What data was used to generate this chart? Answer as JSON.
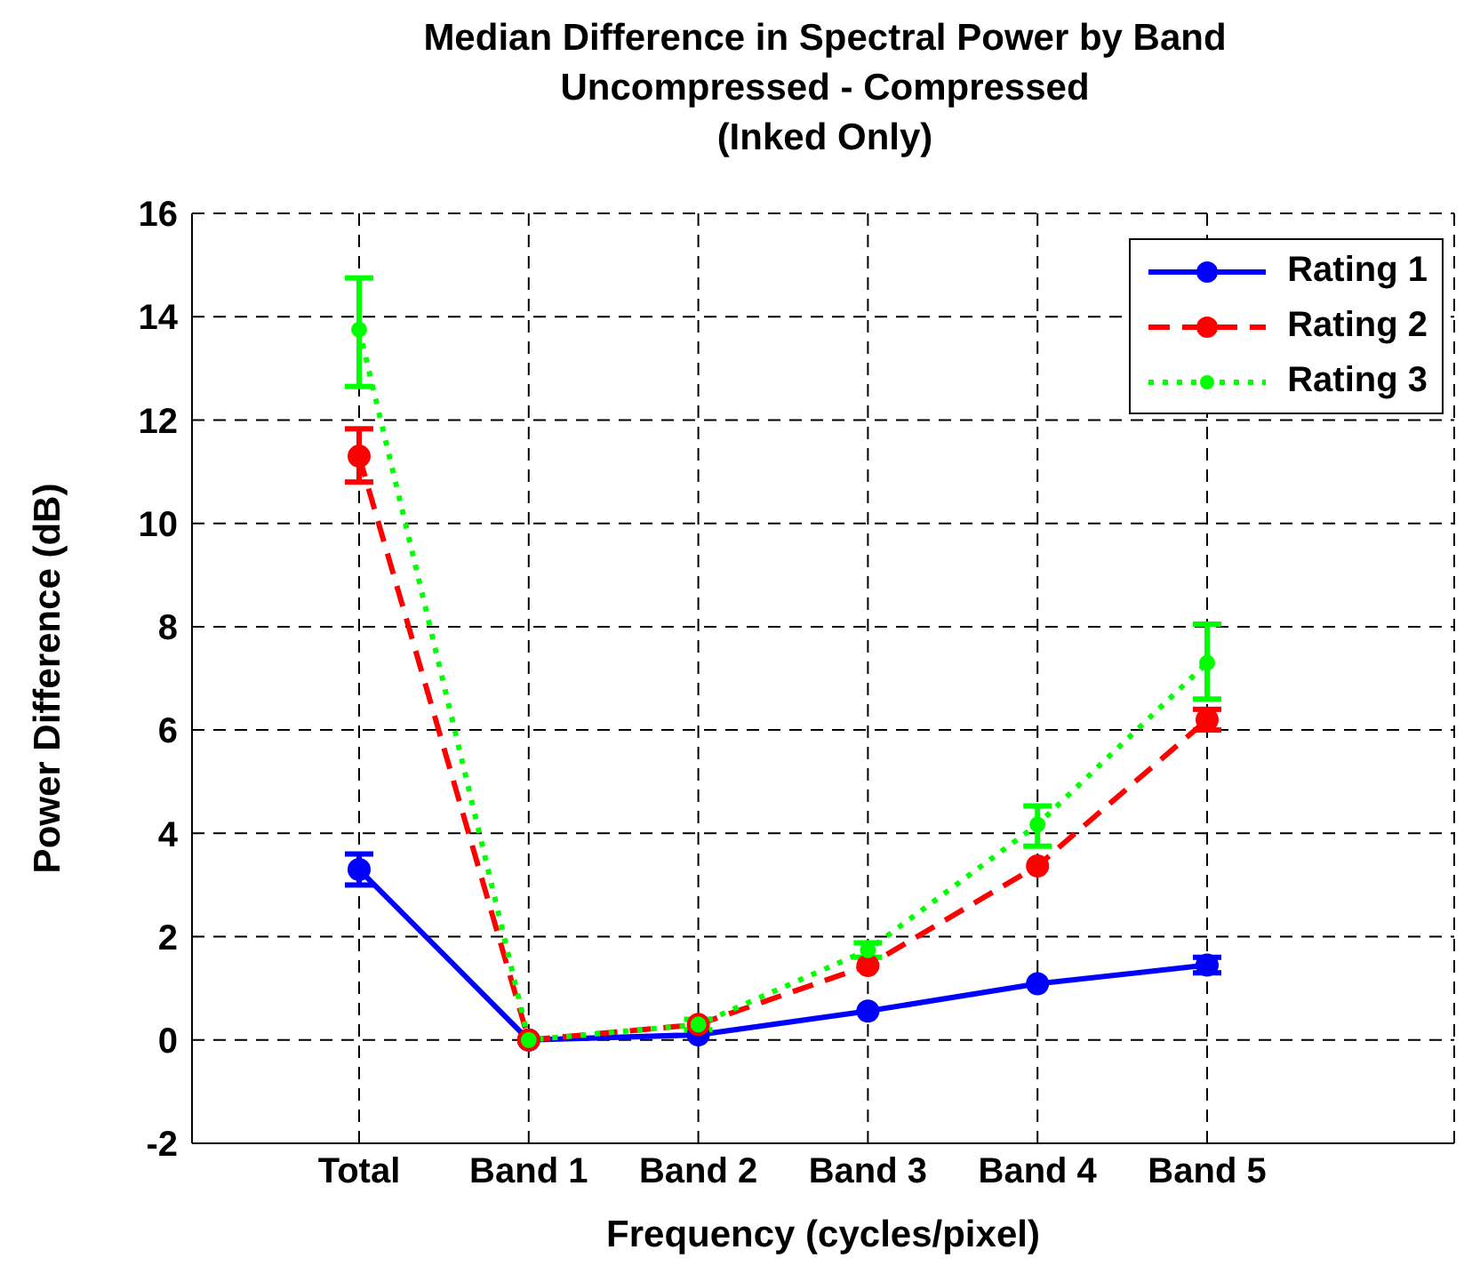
{
  "chart_data": {
    "type": "line",
    "title": "Median Difference in Spectral Power by Band",
    "subtitle": "Uncompressed - Compressed\n(Inked Only)",
    "xlabel": "Frequency (cycles/pixel)",
    "ylabel": "Power Difference (dB)",
    "categories": [
      "Total",
      "Band 1",
      "Band 2",
      "Band 3",
      "Band 4",
      "Band 5"
    ],
    "series": [
      {
        "name": "Rating 1",
        "color": "#0000ff",
        "line_style": "solid",
        "values": [
          3.3,
          0,
          0.1,
          0.56,
          1.09,
          1.45
        ],
        "errors": [
          [
            3.0,
            3.6
          ],
          null,
          null,
          null,
          null,
          [
            1.3,
            1.6
          ]
        ]
      },
      {
        "name": "Rating 2",
        "color": "#ff0000",
        "line_style": "dashed",
        "values": [
          11.3,
          0,
          0.3,
          1.44,
          3.37,
          6.2
        ],
        "errors": [
          [
            10.8,
            11.83
          ],
          null,
          null,
          null,
          null,
          [
            6.0,
            6.4
          ]
        ]
      },
      {
        "name": "Rating 3",
        "color": "#00ff00",
        "line_style": "dotted",
        "values": [
          13.75,
          0,
          0.3,
          1.74,
          4.17,
          7.3
        ],
        "errors": [
          [
            12.65,
            14.75
          ],
          null,
          [
            0.2,
            0.4
          ],
          [
            1.6,
            1.88
          ],
          [
            3.75,
            4.53
          ],
          [
            6.6,
            8.05
          ]
        ]
      }
    ],
    "ylim": [
      -2,
      16
    ],
    "yticks": [
      -2,
      0,
      2,
      4,
      6,
      8,
      10,
      12,
      14,
      16
    ],
    "grid": true,
    "legend": "top right",
    "marker": "circle"
  }
}
